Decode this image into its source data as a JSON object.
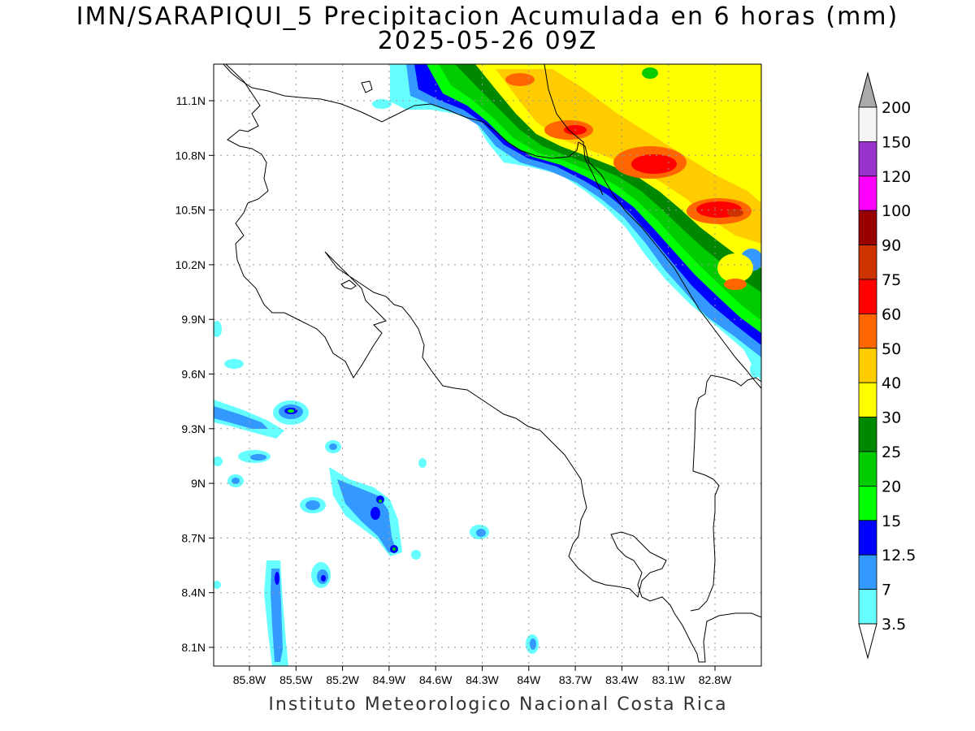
{
  "title": {
    "line1": "IMN/SARAPIQUI_5 Precipitacion Acumulada en 6 horas (mm)",
    "line2": "2025-05-26 09Z"
  },
  "credit": "Instituto Meteorologico Nacional Costa Rica",
  "axes": {
    "lat_labels": [
      "11.1N",
      "10.8N",
      "10.5N",
      "10.2N",
      "9.9N",
      "9.6N",
      "9.3N",
      "9N",
      "8.7N",
      "8.4N",
      "8.1N"
    ],
    "lon_labels": [
      "85.8W",
      "85.5W",
      "85.2W",
      "84.9W",
      "84.6W",
      "84.3W",
      "84W",
      "83.7W",
      "83.4W",
      "83.1W",
      "82.8W"
    ],
    "grid": true
  },
  "colorbar": {
    "labels": [
      "3.5",
      "7",
      "12.5",
      "15",
      "20",
      "25",
      "30",
      "40",
      "50",
      "60",
      "75",
      "90",
      "100",
      "120",
      "150",
      "200"
    ],
    "colors": [
      "#ffffff",
      "#66ffff",
      "#3399ff",
      "#0000ff",
      "#00ff00",
      "#00cc00",
      "#008800",
      "#ffff00",
      "#ffcc00",
      "#ff6600",
      "#ff0000",
      "#cc3300",
      "#990000",
      "#ff00ff",
      "#9933cc",
      "#f5f5f5",
      "#aaaaaa"
    ]
  },
  "chart_data": {
    "type": "heatmap",
    "title": "IMN/SARAPIQUI_5 Precipitacion Acumulada en 6 horas (mm)",
    "subtitle": "2025-05-26 09Z",
    "variable": "Precipitacion Acumulada en 6 horas (mm)",
    "lon_range": [
      -86.04,
      -83.02
    ],
    "lat_range": [
      8.0,
      11.3
    ],
    "levels": [
      3.5,
      7,
      12.5,
      15,
      20,
      25,
      30,
      40,
      50,
      60,
      75,
      90,
      100,
      120,
      150,
      200
    ],
    "features": [
      {
        "region": "northeast Caribbean band (10.2N-11.3N, 84.9W-83.0W)",
        "max_mm": 75
      },
      {
        "region": "southwest Pacific cells (8.0N-9.5N, 86.0W-84.0W)",
        "max_mm": 20
      }
    ]
  }
}
